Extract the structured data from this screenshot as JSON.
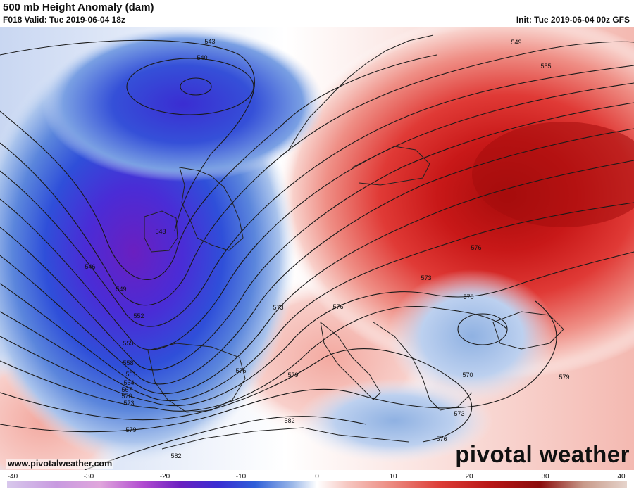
{
  "header": {
    "title": "500 mb Height Anomaly (dam)",
    "valid": "F018 Valid: Tue 2019-06-04 18z",
    "init": "Init: Tue 2019-06-04 00z GFS"
  },
  "footer": {
    "url": "www.pivotalweather.com",
    "logo": "pivotal weather"
  },
  "colorbar": {
    "min": -40,
    "max": 40,
    "tick_labels": [
      "-40",
      "-30",
      "-20",
      "-10",
      "0",
      "10",
      "20",
      "30",
      "40"
    ],
    "tick_values": [
      -40,
      -30,
      -20,
      -10,
      0,
      10,
      20,
      30,
      40
    ]
  },
  "anomalies": [
    {
      "name": "north-atlantic-trough",
      "value": -28,
      "extent": "large"
    },
    {
      "name": "european-ridge",
      "value": 30,
      "extent": "large"
    },
    {
      "name": "balkan-cutoff-low",
      "value": -6,
      "extent": "small"
    }
  ],
  "height_contour_labels": [
    {
      "name": "label-543-north",
      "text": "543"
    },
    {
      "name": "label-540",
      "text": "540"
    },
    {
      "name": "label-549-ne",
      "text": "549"
    },
    {
      "name": "label-555-ne",
      "text": "555"
    },
    {
      "name": "label-543-ireland",
      "text": "543"
    },
    {
      "name": "label-546",
      "text": "546"
    },
    {
      "name": "label-549",
      "text": "549"
    },
    {
      "name": "label-552",
      "text": "552"
    },
    {
      "name": "label-555",
      "text": "555"
    },
    {
      "name": "label-558",
      "text": "558"
    },
    {
      "name": "label-561",
      "text": "561"
    },
    {
      "name": "label-564",
      "text": "564"
    },
    {
      "name": "label-567",
      "text": "567"
    },
    {
      "name": "label-570-west",
      "text": "570"
    },
    {
      "name": "label-573-west",
      "text": "573"
    },
    {
      "name": "label-573-france",
      "text": "573"
    },
    {
      "name": "label-576-alps",
      "text": "576"
    },
    {
      "name": "label-573-central",
      "text": "573"
    },
    {
      "name": "label-576-poland",
      "text": "576"
    },
    {
      "name": "label-570-balkan-north",
      "text": "570"
    },
    {
      "name": "label-570-greece",
      "text": "570"
    },
    {
      "name": "label-579-east",
      "text": "579"
    },
    {
      "name": "label-576-spain",
      "text": "576"
    },
    {
      "name": "label-579-spain",
      "text": "579"
    },
    {
      "name": "label-582-sardinia",
      "text": "582"
    },
    {
      "name": "label-573-aegean",
      "text": "573"
    },
    {
      "name": "label-576-libya",
      "text": "576"
    },
    {
      "name": "label-579-sw",
      "text": "579"
    },
    {
      "name": "label-582-sw",
      "text": "582"
    }
  ]
}
